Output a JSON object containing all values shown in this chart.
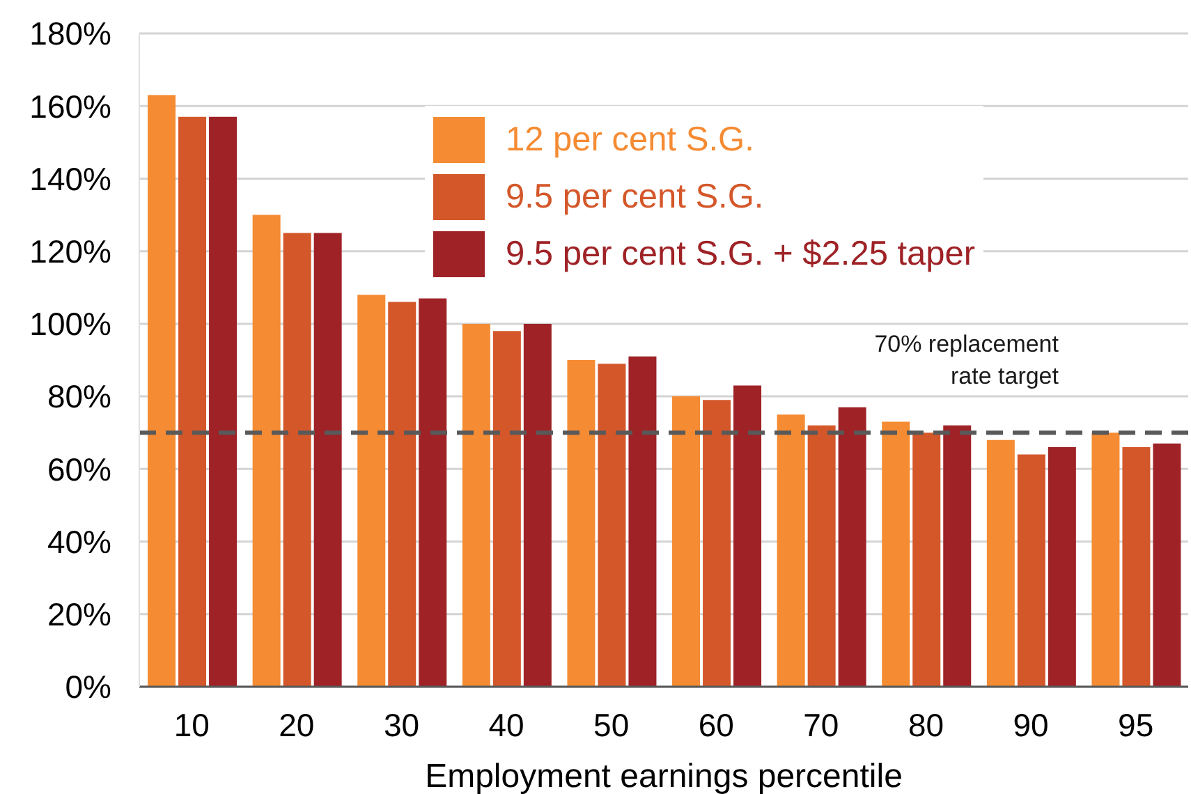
{
  "chart_data": {
    "type": "bar",
    "xlabel": "Employment earnings percentile",
    "categories": [
      "10",
      "20",
      "30",
      "40",
      "50",
      "60",
      "70",
      "80",
      "90",
      "95"
    ],
    "series": [
      {
        "name": "12 per cent S.G.",
        "color": "#f58b32",
        "values": [
          163,
          130,
          108,
          100,
          90,
          80,
          75,
          73,
          68,
          70
        ]
      },
      {
        "name": "9.5 per cent S.G.",
        "color": "#d4572a",
        "values": [
          157,
          125,
          106,
          98,
          89,
          79,
          72,
          70,
          64,
          66
        ]
      },
      {
        "name": "9.5 per cent S.G. + $2.25 taper",
        "color": "#9e2226",
        "values": [
          157,
          125,
          107,
          100,
          91,
          83,
          77,
          72,
          66,
          67
        ]
      }
    ],
    "ylim": [
      0,
      180
    ],
    "yticks": [
      {
        "value": 0,
        "label": "0%"
      },
      {
        "value": 20,
        "label": "20%"
      },
      {
        "value": 40,
        "label": "40%"
      },
      {
        "value": 60,
        "label": "60%"
      },
      {
        "value": 80,
        "label": "80%"
      },
      {
        "value": 100,
        "label": "100%"
      },
      {
        "value": 120,
        "label": "120%"
      },
      {
        "value": 140,
        "label": "140%"
      },
      {
        "value": 160,
        "label": "160%"
      },
      {
        "value": 180,
        "label": "180%"
      }
    ],
    "grid": "y",
    "legend": "top",
    "ref_lines": [
      {
        "axis": "y",
        "value": 70,
        "label": "70% replacement rate target",
        "color": "#595959",
        "line_style": "dashed"
      }
    ]
  }
}
